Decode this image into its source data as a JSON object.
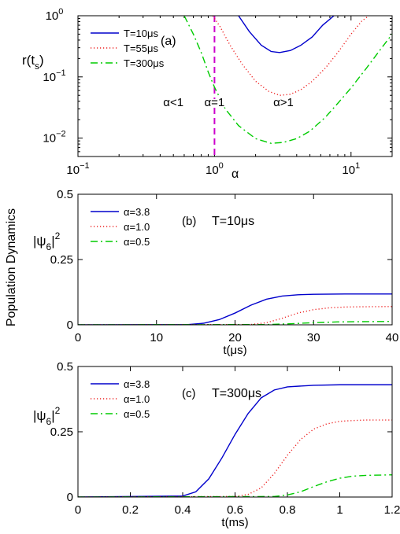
{
  "figure_ylabel": "Population Dynamics",
  "chart_data": [
    {
      "id": "a",
      "type": "line",
      "x_scale": "log",
      "y_scale": "log",
      "xlim": [
        0.1,
        20
      ],
      "ylim": [
        0.005,
        1
      ],
      "xticks": [
        {
          "value": 0.1,
          "base": "10",
          "exp": "−1"
        },
        {
          "value": 1,
          "base": "10",
          "exp": "0"
        },
        {
          "value": 10,
          "base": "10",
          "exp": "1"
        }
      ],
      "yticks": [
        {
          "value": 0.01,
          "base": "10",
          "exp": "−2"
        },
        {
          "value": 0.1,
          "base": "10",
          "exp": "−1"
        },
        {
          "value": 1,
          "base": "10",
          "exp": "0"
        }
      ],
      "xlabel": "α",
      "ylabel": {
        "main": "r(t",
        "sub": "s",
        "tail": ")"
      },
      "panel_label": "(a)",
      "annotations": [
        {
          "text": "α<1",
          "x": 0.5,
          "y": 0.033
        },
        {
          "text": "α=1",
          "x": 1.0,
          "y": 0.033
        },
        {
          "text": "α>1",
          "x": 3.2,
          "y": 0.033
        }
      ],
      "vline": {
        "x": 1,
        "color": "#cc00cc",
        "style": "dashed"
      },
      "legend_position": "top-left",
      "series": [
        {
          "name": "T=10μs",
          "color": "#0000cc",
          "dash": "solid",
          "x": [
            1.5,
            1.8,
            2.2,
            2.6,
            3.0,
            3.6,
            4.3,
            5.2,
            6.2,
            7.5
          ],
          "y": [
            1.0,
            0.55,
            0.33,
            0.26,
            0.25,
            0.27,
            0.33,
            0.45,
            0.7,
            1.0
          ]
        },
        {
          "name": "T=55μs",
          "color": "#ee2222",
          "dash": "dotted",
          "x": [
            0.97,
            1.1,
            1.3,
            1.6,
            2.0,
            2.5,
            3.0,
            3.6,
            4.3,
            5.2,
            6.5,
            8.0,
            10.0,
            12.0,
            13.5
          ],
          "y": [
            1.0,
            0.66,
            0.33,
            0.16,
            0.085,
            0.058,
            0.05,
            0.052,
            0.062,
            0.085,
            0.14,
            0.25,
            0.5,
            0.82,
            1.0
          ]
        },
        {
          "name": "T=300μs",
          "color": "#00cc00",
          "dash": "dashdot",
          "x": [
            0.6,
            0.7,
            0.8,
            0.9,
            1.0,
            1.2,
            1.5,
            2.0,
            2.6,
            3.2,
            4.0,
            5.0,
            6.5,
            8.0,
            10.0,
            13.0,
            16.0,
            20.0
          ],
          "y": [
            1.0,
            0.5,
            0.25,
            0.12,
            0.068,
            0.03,
            0.016,
            0.0098,
            0.0082,
            0.0085,
            0.0098,
            0.013,
            0.022,
            0.037,
            0.066,
            0.14,
            0.26,
            0.5
          ]
        }
      ]
    },
    {
      "id": "b",
      "type": "line",
      "xlim": [
        0,
        40
      ],
      "ylim": [
        0,
        0.5
      ],
      "xticks": [
        "0",
        "10",
        "20",
        "30",
        "40"
      ],
      "yticks": [
        "0",
        "0.25",
        "0.5"
      ],
      "xlabel": "t(μs)",
      "ylabel": {
        "main": "|ψ",
        "sub": "6",
        "tail": "|",
        "sup": "2"
      },
      "panel_label": "(b)",
      "panel_title": "T=10μs",
      "legend_position": "top-left",
      "series": [
        {
          "name": "α=3.8",
          "color": "#0000cc",
          "dash": "solid",
          "x": [
            0,
            14,
            16,
            18,
            20,
            22,
            24,
            26,
            28,
            30,
            34,
            40
          ],
          "y": [
            0,
            0.001,
            0.006,
            0.02,
            0.045,
            0.075,
            0.098,
            0.11,
            0.115,
            0.117,
            0.118,
            0.118
          ]
        },
        {
          "name": "α=1.0",
          "color": "#ee2222",
          "dash": "dotted",
          "x": [
            0,
            22,
            24,
            26,
            28,
            30,
            32,
            34,
            36,
            40
          ],
          "y": [
            0,
            0.001,
            0.008,
            0.025,
            0.045,
            0.058,
            0.065,
            0.068,
            0.069,
            0.07
          ]
        },
        {
          "name": "α=0.5",
          "color": "#00cc00",
          "dash": "dashdot",
          "x": [
            0,
            24,
            27,
            30,
            33,
            36,
            40
          ],
          "y": [
            0,
            0.001,
            0.004,
            0.008,
            0.011,
            0.012,
            0.013
          ]
        }
      ]
    },
    {
      "id": "c",
      "type": "line",
      "xlim": [
        0,
        1.2
      ],
      "ylim": [
        0,
        0.5
      ],
      "xticks": [
        "0",
        "0.2",
        "0.4",
        "0.6",
        "0.8",
        "1",
        "1.2"
      ],
      "yticks": [
        "0",
        "0.25",
        "0.5"
      ],
      "xlabel": "t(ms)",
      "ylabel": {
        "main": "|ψ",
        "sub": "6",
        "tail": "|",
        "sup": "2"
      },
      "panel_label": "(c)",
      "panel_title": "T=300μs",
      "legend_position": "top-left",
      "series": [
        {
          "name": "α=3.8",
          "color": "#0000cc",
          "dash": "solid",
          "x": [
            0,
            0.4,
            0.45,
            0.5,
            0.55,
            0.6,
            0.65,
            0.7,
            0.75,
            0.8,
            0.9,
            1.0,
            1.2
          ],
          "y": [
            0,
            0.004,
            0.02,
            0.07,
            0.15,
            0.24,
            0.32,
            0.38,
            0.41,
            0.422,
            0.428,
            0.43,
            0.43
          ]
        },
        {
          "name": "α=1.0",
          "color": "#ee2222",
          "dash": "dotted",
          "x": [
            0,
            0.6,
            0.65,
            0.7,
            0.75,
            0.8,
            0.85,
            0.9,
            0.95,
            1.0,
            1.05,
            1.1,
            1.2
          ],
          "y": [
            0,
            0.002,
            0.01,
            0.035,
            0.09,
            0.16,
            0.22,
            0.26,
            0.28,
            0.29,
            0.293,
            0.295,
            0.295
          ]
        },
        {
          "name": "α=0.5",
          "color": "#00cc00",
          "dash": "dashdot",
          "x": [
            0,
            0.75,
            0.8,
            0.85,
            0.9,
            0.95,
            1.0,
            1.05,
            1.1,
            1.2
          ],
          "y": [
            0,
            0.002,
            0.008,
            0.02,
            0.04,
            0.058,
            0.072,
            0.08,
            0.083,
            0.085
          ]
        }
      ]
    }
  ]
}
